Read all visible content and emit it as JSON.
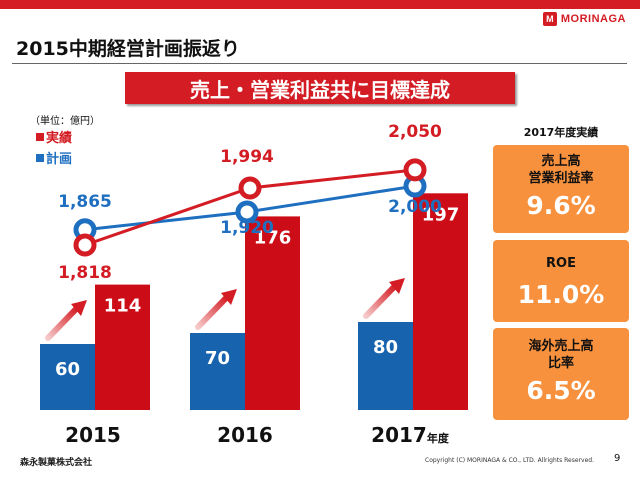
{
  "header": {
    "logo_mark": "M",
    "logo_text": "MORINAGA",
    "title": "2015中期経営計画振返り"
  },
  "banner": "売上・営業利益共に目標達成",
  "chart_data": {
    "type": "bar+line",
    "unit_label": "（単位：億円）",
    "categories": [
      "2015",
      "2016",
      "2017"
    ],
    "category_suffix": [
      "",
      "",
      "年度"
    ],
    "legend": [
      {
        "name": "実績",
        "color": "#d31c23"
      },
      {
        "name": "計画",
        "color": "#1e6fc0"
      }
    ],
    "bars": [
      {
        "name": "計画",
        "color": "#1763ad",
        "values": [
          60,
          70,
          80
        ]
      },
      {
        "name": "実績",
        "color": "#cc0d17",
        "values": [
          114,
          176,
          197
        ]
      }
    ],
    "lines": [
      {
        "name": "計画",
        "color": "#1e6fc0",
        "values": [
          1865,
          1920,
          2000
        ],
        "labels": [
          "1,865",
          "1,920",
          "2,000"
        ]
      },
      {
        "name": "実績",
        "color": "#d31c23",
        "values": [
          1818,
          1994,
          2050
        ],
        "labels": [
          "1,818",
          "1,994",
          "2,050"
        ]
      }
    ]
  },
  "right_panel": {
    "title": "2017年度実績",
    "boxes": [
      {
        "label_1": "売上高",
        "label_2": "営業利益率",
        "value": "9.6%"
      },
      {
        "label_1": "ROE",
        "label_2": "",
        "value": "11.0%"
      },
      {
        "label_1": "海外売上高",
        "label_2": "比率",
        "value": "6.5%"
      }
    ]
  },
  "footer": {
    "company": "森永製菓株式会社",
    "copyright": "Copyright (C) MORINAGA & CO., LTD. Allrights Reserved.",
    "page": "9"
  }
}
